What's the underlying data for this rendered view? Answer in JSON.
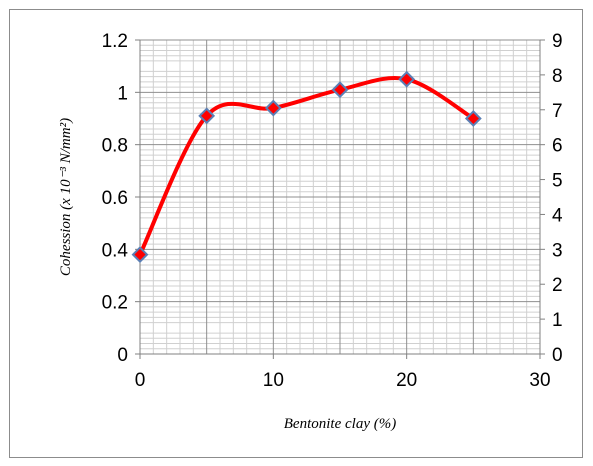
{
  "chart_data": {
    "type": "line",
    "title": "",
    "xlabel": "Bentonite clay (%)",
    "ylabel": "Cohession (x 10⁻³ N/mm²)",
    "xlim": [
      0,
      30
    ],
    "ylim": [
      0,
      1.2
    ],
    "y2lim": [
      0,
      9
    ],
    "x_ticks": [
      "0",
      "10",
      "20",
      "30"
    ],
    "y_ticks": [
      "0",
      "0.2",
      "0.4",
      "0.6",
      "0.8",
      "1",
      "1.2"
    ],
    "y2_ticks": [
      "0",
      "1",
      "2",
      "3",
      "4",
      "5",
      "6",
      "7",
      "8",
      "9"
    ],
    "grid": true,
    "smooth": true,
    "line_color": "#ff0000",
    "marker": "diamond",
    "marker_fill": "#ff0000",
    "marker_edge": "#5b7fb5",
    "series": [
      {
        "x": [
          0,
          5,
          10,
          15,
          20,
          25
        ],
        "values": [
          0.38,
          0.91,
          0.94,
          1.01,
          1.05,
          0.9
        ]
      }
    ]
  }
}
